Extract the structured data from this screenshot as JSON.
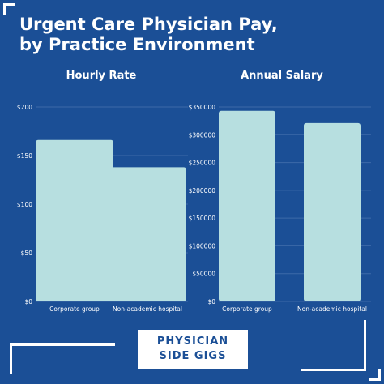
{
  "title_line1": "Urgent Care Physician Pay,",
  "title_line2": "by Practice Environment",
  "logo": {
    "line1": "PHYSICIAN",
    "line2": "SIDE GIGS"
  },
  "colors": {
    "background": "#1b4f96",
    "bar": "#b7dfe0",
    "grid": "#3d6aa8",
    "text": "#ffffff"
  },
  "chart_data": [
    {
      "type": "bar",
      "title": "Hourly Rate",
      "categories": [
        "Corporate group",
        "Non-academic hospital"
      ],
      "values": [
        166,
        138
      ],
      "ylim": [
        0,
        200
      ],
      "yticks": [
        0,
        50,
        100,
        150,
        200
      ],
      "ytick_labels": [
        "$0",
        "$50",
        "$100",
        "$150",
        "$200"
      ],
      "grid": true
    },
    {
      "type": "bar",
      "title": "Annual Salary",
      "categories": [
        "Corporate group",
        "Non-academic hospital"
      ],
      "values": [
        343000,
        321000
      ],
      "ylim": [
        0,
        350000
      ],
      "yticks": [
        0,
        50000,
        100000,
        150000,
        200000,
        250000,
        300000,
        350000
      ],
      "ytick_labels": [
        "$0",
        "$50000",
        "$100000",
        "$150000",
        "$200000",
        "$250000",
        "$300000",
        "$350000"
      ],
      "grid": true
    }
  ]
}
